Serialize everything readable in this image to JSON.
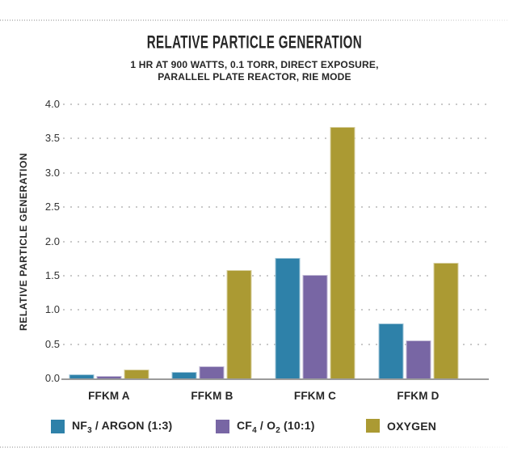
{
  "header": {
    "title": "RELATIVE PARTICLE GENERATION",
    "subtitle_line1": "1 HR AT 900 WATTS, 0.1 TORR, DIRECT EXPOSURE,",
    "subtitle_line2": "PARALLEL PLATE REACTOR, RIE MODE"
  },
  "colors": {
    "series_teal": "#2E81A9",
    "series_purple": "#7866A4",
    "series_olive": "#AB9A33",
    "grid_dots": "#C9C9C9",
    "axis_line": "#9B9B9B",
    "text_dark": "#231F20"
  },
  "legend": {
    "items": [
      {
        "name": "NF3 / ARGON (1:3)",
        "color": "#2E81A9",
        "segments": [
          {
            "text": "NF"
          },
          {
            "text": "3",
            "sub": true
          },
          {
            "text": " / ARGON (1:3)"
          }
        ]
      },
      {
        "name": "CF4 / O2 (10:1)",
        "color": "#7866A4",
        "segments": [
          {
            "text": "CF"
          },
          {
            "text": "4",
            "sub": true
          },
          {
            "text": " / O"
          },
          {
            "text": "2",
            "sub": true
          },
          {
            "text": " (10:1)"
          }
        ]
      },
      {
        "name": "OXYGEN",
        "color": "#AB9A33",
        "segments": [
          {
            "text": "OXYGEN"
          }
        ]
      }
    ]
  },
  "chart_data": {
    "type": "bar",
    "title": "RELATIVE PARTICLE GENERATION",
    "subtitle": "1 HR AT 900 WATTS, 0.1 TORR, DIRECT EXPOSURE, PARALLEL PLATE REACTOR, RIE MODE",
    "categories": [
      "FFKM A",
      "FFKM B",
      "FFKM C",
      "FFKM D"
    ],
    "series": [
      {
        "name": "NF3 / ARGON (1:3)",
        "color": "#2E81A9",
        "values": [
          0.06,
          0.09,
          1.76,
          0.8
        ]
      },
      {
        "name": "CF4 / O2 (10:1)",
        "color": "#7866A4",
        "values": [
          0.03,
          0.18,
          1.51,
          0.55
        ]
      },
      {
        "name": "OXYGEN",
        "color": "#AB9A33",
        "values": [
          0.13,
          1.58,
          3.67,
          1.69
        ]
      }
    ],
    "xlabel": "",
    "ylabel": "RELATIVE PARTICLE GENERATION",
    "ylim": [
      0,
      4.0
    ],
    "ytick_step": 0.5,
    "yticks": [
      "0.0",
      "0.5",
      "1.0",
      "1.5",
      "2.0",
      "2.5",
      "3.0",
      "3.5",
      "4.0"
    ],
    "grid": "horizontal-dotted",
    "legend_position": "bottom"
  }
}
